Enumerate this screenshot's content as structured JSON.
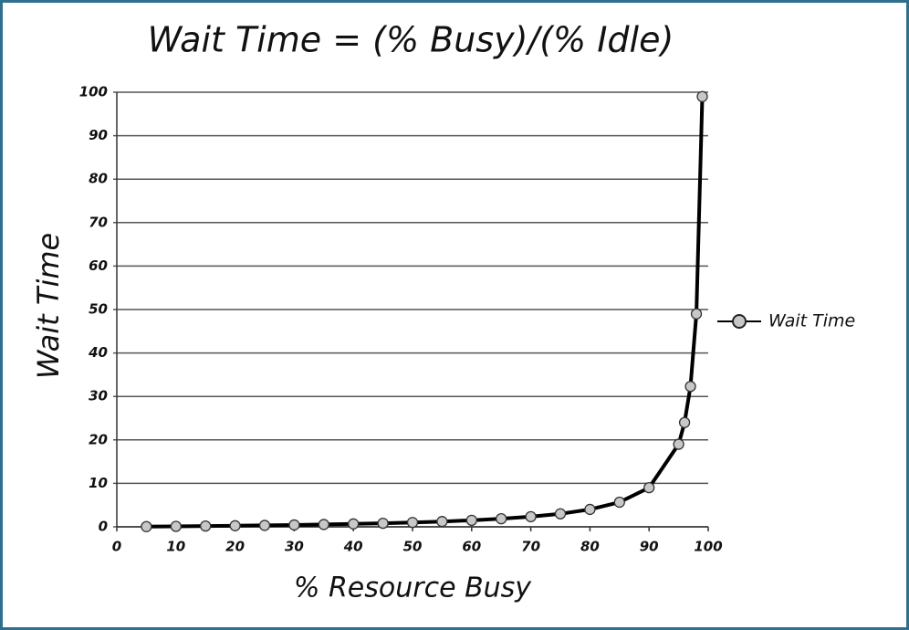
{
  "chart_data": {
    "type": "line",
    "title": "Wait Time = (% Busy)/(% Idle)",
    "x_label": "% Resource Busy",
    "y_label": "Wait Time",
    "x": [
      5,
      10,
      15,
      20,
      25,
      30,
      35,
      40,
      45,
      50,
      55,
      60,
      65,
      70,
      75,
      80,
      85,
      90,
      95,
      96,
      97,
      98,
      99
    ],
    "series": [
      {
        "name": "Wait Time",
        "color": "#000000",
        "marker_color": "#c8c8c8",
        "values": [
          0.05,
          0.11,
          0.18,
          0.25,
          0.33,
          0.43,
          0.54,
          0.67,
          0.82,
          1,
          1.22,
          1.5,
          1.86,
          2.33,
          3,
          4,
          5.67,
          9,
          19,
          24,
          32.3,
          49,
          99
        ]
      }
    ],
    "xlim": [
      0,
      100
    ],
    "ylim": [
      0,
      100
    ],
    "xticks": [
      0,
      10,
      20,
      30,
      40,
      50,
      60,
      70,
      80,
      90,
      100
    ],
    "yticks": [
      0,
      10,
      20,
      30,
      40,
      50,
      60,
      70,
      80,
      90,
      100
    ],
    "grid": true,
    "legend": "right"
  }
}
